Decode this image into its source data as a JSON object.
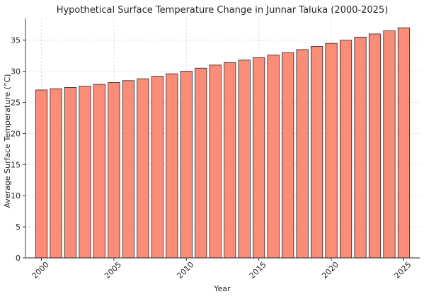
{
  "chart_data": {
    "type": "bar",
    "title": "Hypothetical Surface Temperature Change in Junnar Taluka (2000-2025)",
    "xlabel": "Year",
    "ylabel": "Average Surface Temperature (°C)",
    "categories": [
      2000,
      2001,
      2002,
      2003,
      2004,
      2005,
      2006,
      2007,
      2008,
      2009,
      2010,
      2011,
      2012,
      2013,
      2014,
      2015,
      2016,
      2017,
      2018,
      2019,
      2020,
      2021,
      2022,
      2023,
      2024,
      2025
    ],
    "values": [
      27.0,
      27.2,
      27.4,
      27.6,
      27.9,
      28.2,
      28.5,
      28.8,
      29.2,
      29.6,
      30.0,
      30.5,
      31.0,
      31.4,
      31.8,
      32.2,
      32.6,
      33.0,
      33.5,
      34.0,
      34.5,
      35.0,
      35.5,
      36.0,
      36.5,
      37.0
    ],
    "ylim": [
      0,
      38.5
    ],
    "xlim": [
      1998.9,
      2026.1
    ],
    "yticks": [
      0,
      5,
      10,
      15,
      20,
      25,
      30,
      35
    ],
    "xticks": [
      2000,
      2005,
      2010,
      2015,
      2020,
      2025
    ],
    "grid": true,
    "bar_color": "#fa8c78",
    "bar_edge_color": "#262626"
  }
}
